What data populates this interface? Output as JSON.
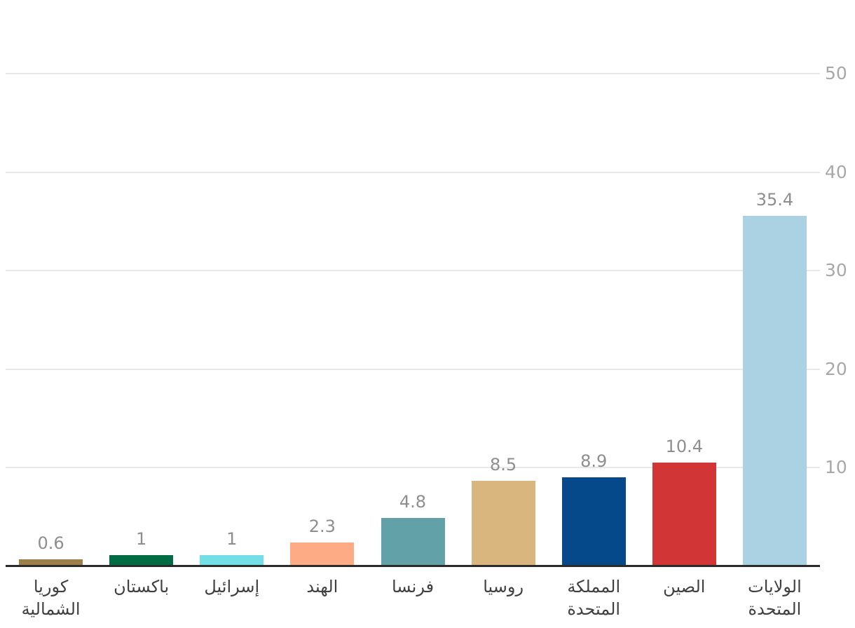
{
  "chart_data": {
    "type": "bar",
    "orientation": "vertical",
    "title": "",
    "xlabel": "",
    "ylabel": "",
    "categories": [
      "كوريا الشمالية",
      "باكستان",
      "إسرائيل",
      "الهند",
      "فرنسا",
      "روسيا",
      "المملكة المتحدة",
      "الصين",
      "الولايات المتحدة"
    ],
    "category_lines": [
      [
        "كوريا",
        "الشمالية"
      ],
      [
        "باكستان"
      ],
      [
        "إسرائيل"
      ],
      [
        "الهند"
      ],
      [
        "فرنسا"
      ],
      [
        "روسيا"
      ],
      [
        "المملكة",
        "المتحدة"
      ],
      [
        "الصين"
      ],
      [
        "الولايات",
        "المتحدة"
      ]
    ],
    "values": [
      0.6,
      1,
      1,
      2.3,
      4.8,
      8.5,
      8.9,
      10.4,
      35.4
    ],
    "value_labels": [
      "0.6",
      "1",
      "1",
      "2.3",
      "4.8",
      "8.5",
      "8.9",
      "10.4",
      "35.4"
    ],
    "bar_colors": [
      "#9d8049",
      "#006b45",
      "#73dee5",
      "#fcab84",
      "#63a1a9",
      "#d9b67e",
      "#05498a",
      "#d23535",
      "#abd2e2"
    ],
    "yticks": [
      10,
      20,
      30,
      40,
      50
    ],
    "ytick_labels": [
      "10",
      "20",
      "30",
      "40",
      "50"
    ],
    "ylim": [
      0,
      50
    ],
    "grid": true,
    "ytick_side": "right",
    "legend": null,
    "colors": {
      "background": "#ffffff",
      "gridline": "#e8e8e8",
      "axis_line": "#2b2b2b",
      "value_label": "#8e8e8e",
      "ytick_label": "#a8a8a8",
      "category_label": "#3f3f3f"
    }
  }
}
